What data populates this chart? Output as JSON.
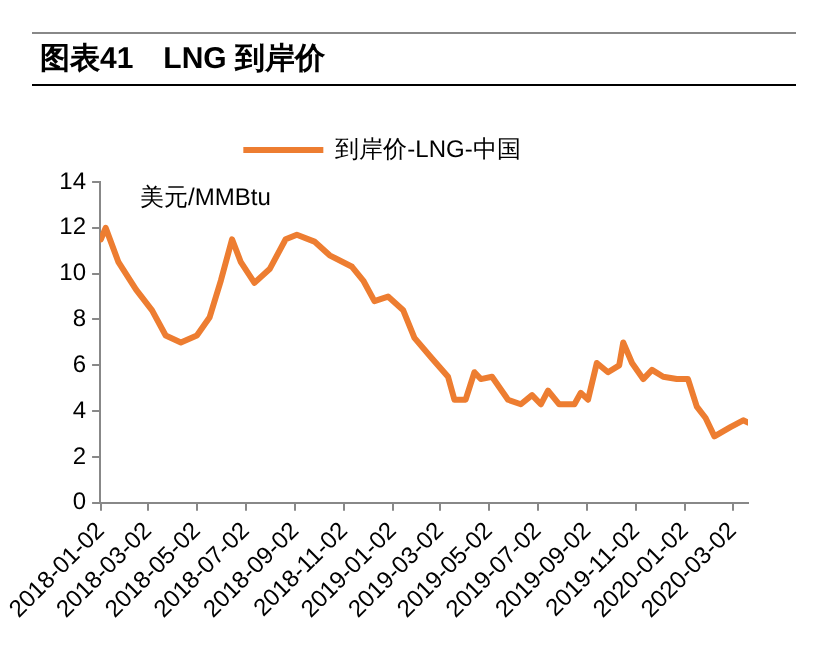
{
  "chart_data": {
    "type": "line",
    "title": "图表41　LNG 到岸价",
    "ylabel": "美元/MMBtu",
    "legend": "top",
    "grid": false,
    "marker": "none",
    "line_style": "solid",
    "x": [
      "2018-01-02",
      "2018-01-08",
      "2018-01-24",
      "2018-02-15",
      "2018-03-07",
      "2018-03-24",
      "2018-04-12",
      "2018-05-02",
      "2018-05-18",
      "2018-06-01",
      "2018-06-15",
      "2018-06-26",
      "2018-07-13",
      "2018-08-01",
      "2018-08-21",
      "2018-09-04",
      "2018-09-26",
      "2018-10-15",
      "2018-11-12",
      "2018-11-26",
      "2018-12-10",
      "2018-12-27",
      "2019-01-15",
      "2019-01-29",
      "2019-02-20",
      "2019-03-12",
      "2019-03-20",
      "2019-04-03",
      "2019-04-14",
      "2019-04-22",
      "2019-05-06",
      "2019-05-26",
      "2019-06-11",
      "2019-06-25",
      "2019-07-06",
      "2019-07-15",
      "2019-07-29",
      "2019-08-17",
      "2019-08-25",
      "2019-09-03",
      "2019-09-14",
      "2019-09-28",
      "2019-10-12",
      "2019-10-17",
      "2019-10-28",
      "2019-11-11",
      "2019-11-22",
      "2019-12-06",
      "2019-12-23",
      "2020-01-06",
      "2020-01-17",
      "2020-01-28",
      "2020-02-08",
      "2020-02-28",
      "2020-03-15",
      "2020-03-21"
    ],
    "series": [
      {
        "name": "到岸价-LNG-中国",
        "color": "#ed7d31",
        "values": [
          11.5,
          12.0,
          10.5,
          9.3,
          8.4,
          7.3,
          7.0,
          7.3,
          8.1,
          9.7,
          11.5,
          10.5,
          9.6,
          10.2,
          11.5,
          11.7,
          11.4,
          10.8,
          10.3,
          9.7,
          8.8,
          9.0,
          8.4,
          7.2,
          6.3,
          5.5,
          4.5,
          4.5,
          5.7,
          5.4,
          5.5,
          4.5,
          4.3,
          4.7,
          4.3,
          4.9,
          4.3,
          4.3,
          4.8,
          4.5,
          6.1,
          5.7,
          6.0,
          7.0,
          6.1,
          5.4,
          5.8,
          5.5,
          5.4,
          5.4,
          4.2,
          3.7,
          2.9,
          3.3,
          3.6,
          3.5
        ]
      }
    ],
    "xlim": [
      "2018-01-01",
      "2020-03-21"
    ],
    "xticks": [
      "2018-01-02",
      "2018-03-02",
      "2018-05-02",
      "2018-07-02",
      "2018-09-02",
      "2018-11-02",
      "2019-01-02",
      "2019-03-02",
      "2019-05-02",
      "2019-07-02",
      "2019-09-02",
      "2019-11-02",
      "2020-01-02",
      "2020-03-02"
    ],
    "ylim": [
      0,
      14
    ],
    "yticks": [
      0,
      2,
      4,
      6,
      8,
      10,
      12,
      14
    ]
  }
}
